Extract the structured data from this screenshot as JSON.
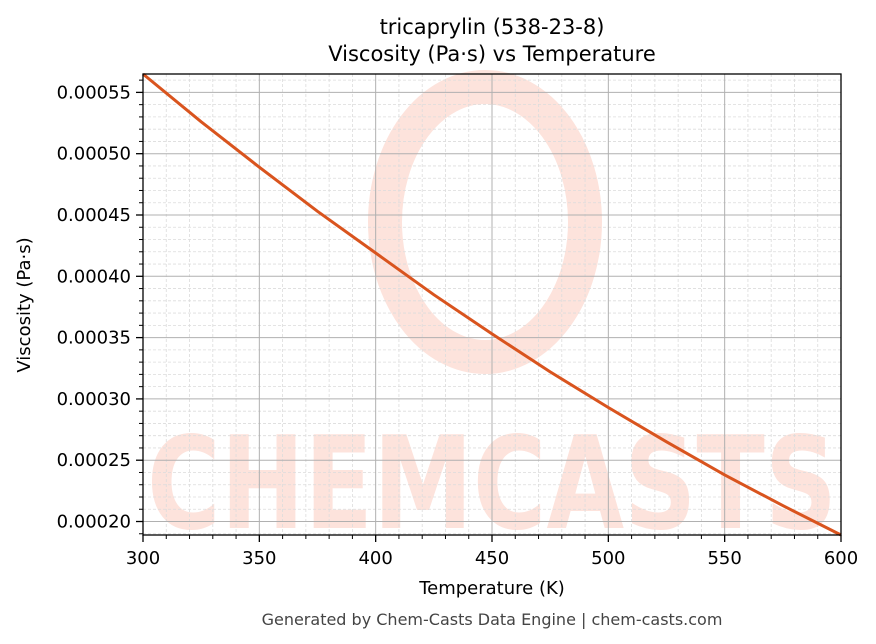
{
  "header": {
    "title_line1": "tricaprylin (538-23-8)",
    "title_line2": "Viscosity (Pa·s) vs Temperature"
  },
  "footer": {
    "credit": "Generated by Chem-Casts Data Engine | chem-casts.com"
  },
  "watermark": {
    "text": "CHEMCASTS",
    "color": "#fde3dc"
  },
  "colors": {
    "line": "#d9541e",
    "grid_major": "#b0b0b0",
    "grid_minor": "#dcdcdc",
    "axis": "#000000"
  },
  "chart_data": {
    "type": "line",
    "title": "tricaprylin (538-23-8)\nViscosity (Pa·s) vs Temperature",
    "xlabel": "Temperature (K)",
    "ylabel": "Viscosity (Pa·s)",
    "xlim": [
      300,
      600
    ],
    "ylim": [
      0.000189,
      0.000565
    ],
    "x_ticks": [
      "300",
      "350",
      "400",
      "450",
      "500",
      "550",
      "600"
    ],
    "y_ticks": [
      "0.00020",
      "0.00025",
      "0.00030",
      "0.00035",
      "0.00040",
      "0.00045",
      "0.00050",
      "0.00055"
    ],
    "grid": true,
    "legend": null,
    "series": [
      {
        "name": "Viscosity",
        "x": [
          300,
          325,
          350,
          375,
          400,
          425,
          450,
          475,
          500,
          525,
          550,
          575,
          600
        ],
        "values": [
          0.000565,
          0.000526,
          0.000489,
          0.000453,
          0.000419,
          0.000385,
          0.000353,
          0.000322,
          0.000293,
          0.000265,
          0.000238,
          0.000213,
          0.000189
        ]
      }
    ]
  }
}
